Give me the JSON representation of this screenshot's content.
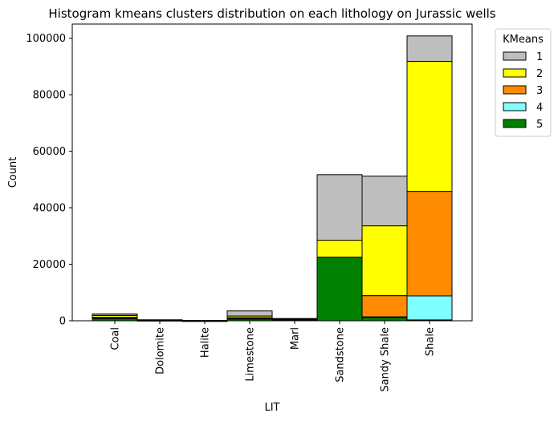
{
  "chart_data": {
    "type": "bar",
    "stacked": true,
    "title": "Histogram kmeans clusters distribution on each lithology on Jurassic wells",
    "xlabel": "LIT",
    "ylabel": "Count",
    "ylim": [
      0,
      105000
    ],
    "yticks": [
      0,
      20000,
      40000,
      60000,
      80000,
      100000
    ],
    "categories": [
      "Coal",
      "Dolomite",
      "Halite",
      "Limestone",
      "Marl",
      "Sandstone",
      "Sandy Shale",
      "Shale"
    ],
    "legend_title": "KMeans",
    "legend_placement": "top-right outside",
    "grid": false,
    "series": [
      {
        "name": "5",
        "color": "#008000",
        "values": [
          800,
          150,
          30,
          700,
          350,
          22500,
          1200,
          300
        ]
      },
      {
        "name": "4",
        "color": "#80ffff",
        "values": [
          100,
          20,
          5,
          80,
          50,
          0,
          200,
          8500
        ]
      },
      {
        "name": "3",
        "color": "#ff8c00",
        "values": [
          300,
          40,
          10,
          300,
          100,
          0,
          7500,
          37000
        ]
      },
      {
        "name": "2",
        "color": "#ffff00",
        "values": [
          700,
          60,
          15,
          600,
          150,
          6000,
          24700,
          46000
        ]
      },
      {
        "name": "1",
        "color": "#bebebe",
        "values": [
          500,
          80,
          10,
          1800,
          150,
          23200,
          17600,
          9000
        ]
      }
    ],
    "legend_order": [
      "1",
      "2",
      "3",
      "4",
      "5"
    ]
  }
}
